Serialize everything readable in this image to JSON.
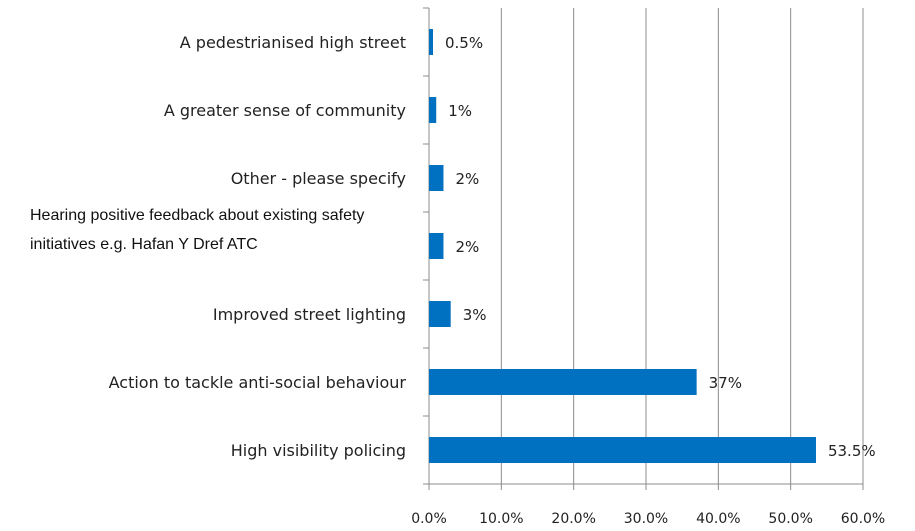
{
  "chart_data": {
    "type": "bar",
    "orientation": "horizontal",
    "categories": [
      "A pedestrianised high street",
      "A greater sense of community",
      "Other - please specify",
      "Hearing positive feedback about existing safety initiatives e.g. Hafan Y Dref ATC",
      "Improved street lighting",
      "Action to tackle anti-social behaviour",
      "High visibility policing"
    ],
    "values": [
      0.5,
      1,
      2,
      2,
      3,
      37,
      53.5
    ],
    "data_labels": [
      "0.5%",
      "1%",
      "2%",
      "2%",
      "3%",
      "37%",
      "53.5%"
    ],
    "xlim": [
      0,
      60
    ],
    "x_ticks": [
      0,
      10,
      20,
      30,
      40,
      50,
      60
    ],
    "x_tick_labels": [
      "0.0%",
      "10.0%",
      "20.0%",
      "30.0%",
      "40.0%",
      "50.0%",
      "60.0%"
    ],
    "title": "",
    "xlabel": "",
    "ylabel": "",
    "grid": "vertical",
    "legend": "none",
    "bar_color": "#0070c0"
  }
}
